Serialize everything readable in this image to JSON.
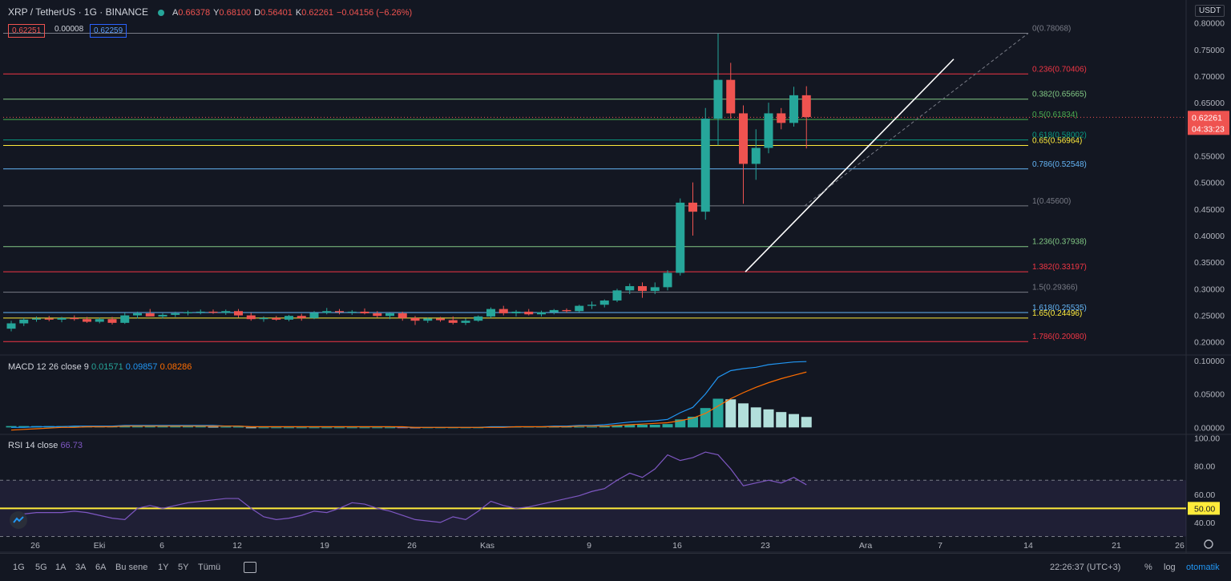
{
  "header": {
    "symbol": "XRP / TetherUS · 1G · BINANCE",
    "o_label": "A",
    "o_value": "0.66378",
    "h_label": "Y",
    "h_value": "0.68100",
    "l_label": "D",
    "l_value": "0.56401",
    "c_label": "K",
    "c_value": "0.62261",
    "change": "−0.04156 (−6.26%)",
    "sell": "0.62251",
    "spread": "0.00008",
    "buy": "0.62259"
  },
  "currency_label": "USDT",
  "price_axis": [
    "0.80000",
    "0.75000",
    "0.70000",
    "0.65000",
    "0.60000",
    "0.55000",
    "0.50000",
    "0.45000",
    "0.40000",
    "0.35000",
    "0.30000",
    "0.25000",
    "0.20000"
  ],
  "last_price": {
    "value": "0.62261",
    "countdown": "04:33:23"
  },
  "macd": {
    "label": "MACD 12 26 close 9",
    "hist": "0.01571",
    "macd": "0.09857",
    "signal": "0.08286",
    "axis": [
      "0.10000",
      "0.05000",
      "0.00000"
    ]
  },
  "rsi": {
    "label": "RSI 14 close",
    "value": "66.73",
    "axis": [
      "100.00",
      "80.00",
      "60.00",
      "50.00",
      "40.00"
    ]
  },
  "time_axis": [
    "26",
    "Eki",
    "6",
    "12",
    "19",
    "26",
    "Kas",
    "9",
    "16",
    "23",
    "Ara",
    "7",
    "14",
    "21",
    "26"
  ],
  "footer": {
    "ranges": [
      "1G",
      "5G",
      "1A",
      "3A",
      "6A",
      "Bu sene",
      "1Y",
      "5Y",
      "Tümü"
    ],
    "clock": "22:26:37 (UTC+3)",
    "pct": "%",
    "log": "log",
    "auto": "otomatik"
  },
  "chart_data": {
    "type": "candlestick",
    "title": "XRP / TetherUS · 1G · BINANCE",
    "ylim": [
      0.18,
      0.81
    ],
    "candles": [
      [
        0.225,
        0.24,
        0.22,
        0.235
      ],
      [
        0.235,
        0.245,
        0.23,
        0.242
      ],
      [
        0.242,
        0.248,
        0.238,
        0.244
      ],
      [
        0.244,
        0.249,
        0.239,
        0.242
      ],
      [
        0.242,
        0.247,
        0.237,
        0.245
      ],
      [
        0.245,
        0.25,
        0.24,
        0.243
      ],
      [
        0.243,
        0.247,
        0.236,
        0.238
      ],
      [
        0.238,
        0.246,
        0.235,
        0.243
      ],
      [
        0.243,
        0.247,
        0.233,
        0.236
      ],
      [
        0.236,
        0.255,
        0.234,
        0.25
      ],
      [
        0.25,
        0.257,
        0.244,
        0.254
      ],
      [
        0.254,
        0.262,
        0.25,
        0.248
      ],
      [
        0.248,
        0.254,
        0.244,
        0.251
      ],
      [
        0.251,
        0.257,
        0.247,
        0.254
      ],
      [
        0.254,
        0.259,
        0.25,
        0.256
      ],
      [
        0.256,
        0.261,
        0.252,
        0.257
      ],
      [
        0.257,
        0.261,
        0.253,
        0.255
      ],
      [
        0.255,
        0.261,
        0.251,
        0.258
      ],
      [
        0.258,
        0.262,
        0.246,
        0.25
      ],
      [
        0.25,
        0.255,
        0.24,
        0.243
      ],
      [
        0.243,
        0.248,
        0.238,
        0.245
      ],
      [
        0.245,
        0.249,
        0.24,
        0.242
      ],
      [
        0.242,
        0.251,
        0.239,
        0.249
      ],
      [
        0.249,
        0.253,
        0.24,
        0.245
      ],
      [
        0.245,
        0.258,
        0.243,
        0.255
      ],
      [
        0.255,
        0.264,
        0.252,
        0.258
      ],
      [
        0.258,
        0.262,
        0.252,
        0.256
      ],
      [
        0.256,
        0.26,
        0.251,
        0.257
      ],
      [
        0.257,
        0.263,
        0.252,
        0.254
      ],
      [
        0.254,
        0.258,
        0.246,
        0.249
      ],
      [
        0.249,
        0.255,
        0.243,
        0.254
      ],
      [
        0.254,
        0.257,
        0.24,
        0.245
      ],
      [
        0.245,
        0.249,
        0.232,
        0.24
      ],
      [
        0.24,
        0.246,
        0.236,
        0.244
      ],
      [
        0.244,
        0.247,
        0.238,
        0.241
      ],
      [
        0.241,
        0.248,
        0.233,
        0.236
      ],
      [
        0.236,
        0.244,
        0.232,
        0.24
      ],
      [
        0.24,
        0.25,
        0.238,
        0.248
      ],
      [
        0.248,
        0.265,
        0.245,
        0.262
      ],
      [
        0.262,
        0.268,
        0.25,
        0.254
      ],
      [
        0.254,
        0.26,
        0.248,
        0.257
      ],
      [
        0.257,
        0.262,
        0.25,
        0.252
      ],
      [
        0.252,
        0.259,
        0.248,
        0.256
      ],
      [
        0.256,
        0.262,
        0.252,
        0.26
      ],
      [
        0.26,
        0.263,
        0.255,
        0.258
      ],
      [
        0.258,
        0.27,
        0.256,
        0.268
      ],
      [
        0.268,
        0.276,
        0.262,
        0.27
      ],
      [
        0.27,
        0.28,
        0.265,
        0.278
      ],
      [
        0.278,
        0.3,
        0.275,
        0.297
      ],
      [
        0.297,
        0.31,
        0.29,
        0.305
      ],
      [
        0.305,
        0.312,
        0.283,
        0.296
      ],
      [
        0.296,
        0.312,
        0.29,
        0.303
      ],
      [
        0.303,
        0.335,
        0.297,
        0.33
      ],
      [
        0.33,
        0.47,
        0.325,
        0.462
      ],
      [
        0.462,
        0.5,
        0.4,
        0.445
      ],
      [
        0.445,
        0.64,
        0.43,
        0.62
      ],
      [
        0.62,
        0.78,
        0.57,
        0.693
      ],
      [
        0.693,
        0.725,
        0.62,
        0.63
      ],
      [
        0.63,
        0.645,
        0.46,
        0.535
      ],
      [
        0.535,
        0.6,
        0.505,
        0.565
      ],
      [
        0.565,
        0.65,
        0.555,
        0.63
      ],
      [
        0.63,
        0.64,
        0.6,
        0.612
      ],
      [
        0.612,
        0.68,
        0.605,
        0.664
      ],
      [
        0.664,
        0.681,
        0.564,
        0.623
      ]
    ],
    "fib_levels": [
      {
        "label": "0(0.78068)",
        "value": 0.78068,
        "color": "#787b86"
      },
      {
        "label": "0.236(0.70406)",
        "value": 0.70406,
        "color": "#f23645"
      },
      {
        "label": "0.382(0.65665)",
        "value": 0.65665,
        "color": "#81c784"
      },
      {
        "label": "0.5(0.61834)",
        "value": 0.61834,
        "color": "#4caf50"
      },
      {
        "label": "0.618(0.58002)",
        "value": 0.58002,
        "color": "#089981"
      },
      {
        "label": "0.65(0.56964)",
        "value": 0.56964,
        "color": "#ffeb3b"
      },
      {
        "label": "0.786(0.52548)",
        "value": 0.52548,
        "color": "#64b5f6"
      },
      {
        "label": "1(0.45600)",
        "value": 0.456,
        "color": "#787b86"
      },
      {
        "label": "1.236(0.37938)",
        "value": 0.37938,
        "color": "#81c784"
      },
      {
        "label": "1.382(0.33197)",
        "value": 0.33197,
        "color": "#f23645"
      },
      {
        "label": "1.5(0.29366)",
        "value": 0.29366,
        "color": "#787b86"
      },
      {
        "label": "1.618(0.25535)",
        "value": 0.25535,
        "color": "#64b5f6"
      },
      {
        "label": "1.65(0.24496)",
        "value": 0.24496,
        "color": "#ffeb3b"
      },
      {
        "label": "1.786(0.20080)",
        "value": 0.2008,
        "color": "#f23645"
      }
    ],
    "macd_line": [
      0.0,
      0.0,
      0.001,
      0.001,
      0.001,
      0.002,
      0.002,
      0.002,
      0.002,
      0.003,
      0.003,
      0.003,
      0.003,
      0.003,
      0.003,
      0.003,
      0.003,
      0.002,
      0.002,
      0.001,
      0.001,
      0.001,
      0.001,
      0.001,
      0.001,
      0.001,
      0.001,
      0.001,
      0.001,
      0.001,
      0.001,
      0.0,
      0.0,
      0.0,
      0.0,
      0.0,
      0.0,
      0.0,
      0.001,
      0.001,
      0.001,
      0.001,
      0.001,
      0.002,
      0.002,
      0.003,
      0.003,
      0.004,
      0.006,
      0.008,
      0.009,
      0.01,
      0.012,
      0.022,
      0.03,
      0.05,
      0.075,
      0.085,
      0.088,
      0.09,
      0.094,
      0.096,
      0.098,
      0.0986
    ],
    "signal_line": [
      -0.004,
      -0.003,
      -0.002,
      -0.001,
      0.0,
      0.0,
      0.001,
      0.001,
      0.001,
      0.002,
      0.002,
      0.002,
      0.002,
      0.002,
      0.002,
      0.002,
      0.002,
      0.002,
      0.002,
      0.001,
      0.001,
      0.001,
      0.001,
      0.001,
      0.001,
      0.001,
      0.001,
      0.001,
      0.001,
      0.001,
      0.001,
      0.001,
      0.0,
      0.0,
      0.0,
      0.0,
      0.0,
      0.0,
      0.0,
      0.0,
      0.001,
      0.001,
      0.001,
      0.001,
      0.001,
      0.002,
      0.002,
      0.002,
      0.003,
      0.004,
      0.005,
      0.006,
      0.007,
      0.01,
      0.014,
      0.021,
      0.032,
      0.043,
      0.052,
      0.06,
      0.067,
      0.073,
      0.078,
      0.0829
    ],
    "macd_hist": [
      0.002,
      0.002,
      0.002,
      0.002,
      0.002,
      0.002,
      0.002,
      0.002,
      0.002,
      0.002,
      0.002,
      0.002,
      0.002,
      0.002,
      0.002,
      0.002,
      0.001,
      0.001,
      0.001,
      0.0,
      0.0,
      0.0,
      0.0,
      0.0,
      0.0,
      0.0,
      0.0,
      0.0,
      0.0,
      0.0,
      0.0,
      -0.001,
      -0.001,
      0.0,
      0.0,
      0.0,
      0.0,
      0.0,
      0.001,
      0.001,
      0.001,
      0.001,
      0.001,
      0.001,
      0.001,
      0.001,
      0.001,
      0.002,
      0.003,
      0.004,
      0.004,
      0.004,
      0.005,
      0.012,
      0.016,
      0.029,
      0.043,
      0.042,
      0.036,
      0.03,
      0.027,
      0.023,
      0.02,
      0.0157
    ],
    "rsi": [
      45,
      46,
      47,
      47,
      47,
      48,
      47,
      45,
      43,
      42,
      50,
      52,
      50,
      52,
      54,
      55,
      56,
      57,
      57,
      50,
      44,
      42,
      43,
      45,
      48,
      47,
      50,
      54,
      53,
      50,
      48,
      45,
      42,
      41,
      40,
      44,
      42,
      48,
      55,
      52,
      50,
      51,
      53,
      55,
      57,
      59,
      62,
      64,
      70,
      75,
      72,
      78,
      88,
      84,
      86,
      90,
      88,
      78,
      66,
      68,
      70,
      68,
      72,
      66.73
    ]
  }
}
